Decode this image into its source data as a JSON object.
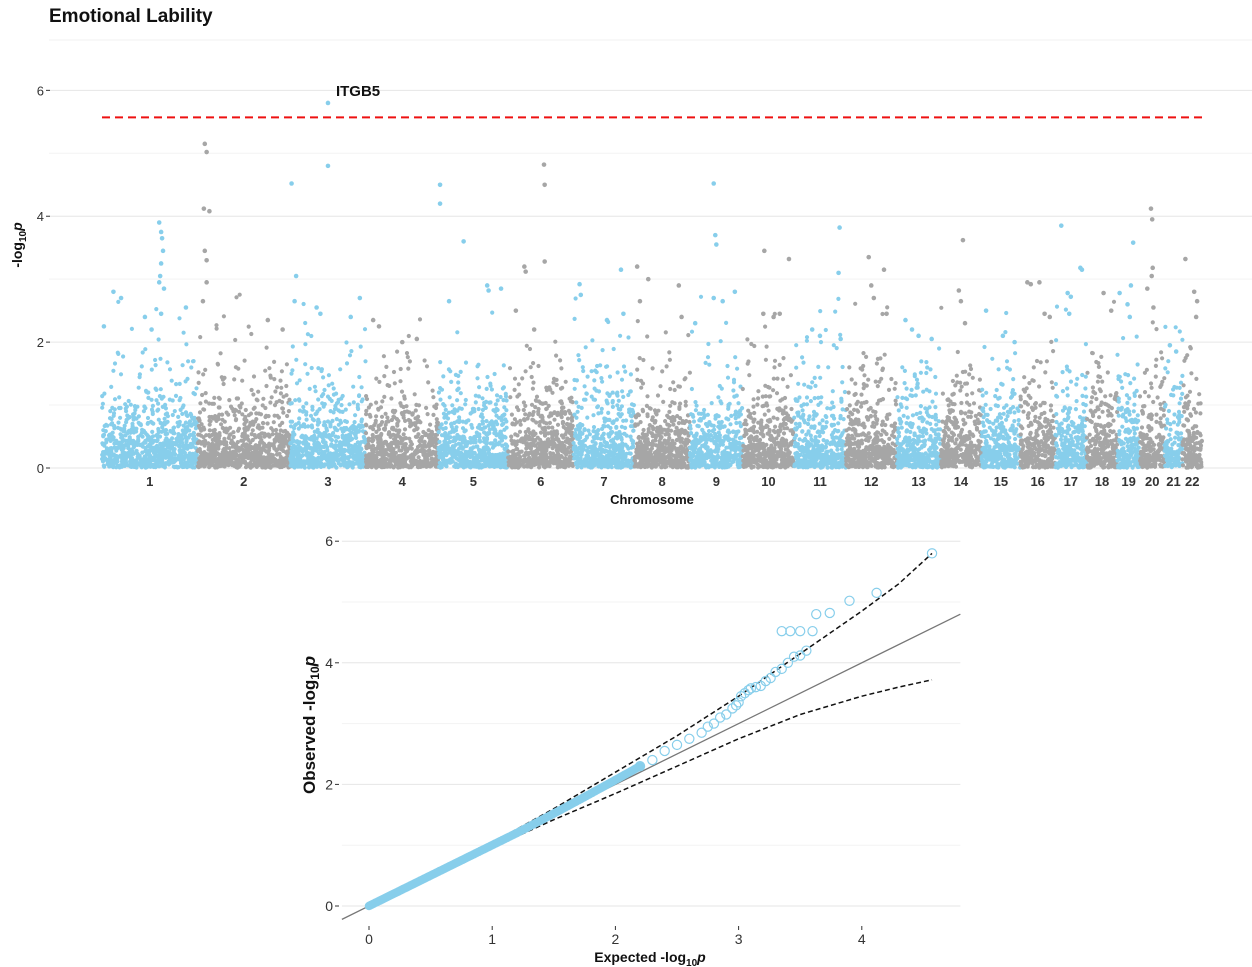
{
  "figure_title": "Emotional Lability",
  "chart_data": [
    {
      "type": "scatter",
      "subtype": "manhattan",
      "title": "Emotional Lability",
      "xlabel": "Chromosome",
      "ylabel_main": "-log",
      "ylabel_sub": "10",
      "ylabel_tail": "p",
      "ylim": [
        0,
        6.8
      ],
      "yticks": [
        0,
        2,
        4,
        6
      ],
      "significance_threshold": 5.57,
      "threshold_color": "#ee1111",
      "colors": [
        "#87ceeb",
        "#a6a6a6"
      ],
      "grid": "horizontal",
      "chromosomes": [
        {
          "label": "1",
          "relative_size": 249
        },
        {
          "label": "2",
          "relative_size": 242
        },
        {
          "label": "3",
          "relative_size": 198
        },
        {
          "label": "4",
          "relative_size": 190
        },
        {
          "label": "5",
          "relative_size": 181
        },
        {
          "label": "6",
          "relative_size": 171
        },
        {
          "label": "7",
          "relative_size": 159
        },
        {
          "label": "8",
          "relative_size": 145
        },
        {
          "label": "9",
          "relative_size": 138
        },
        {
          "label": "10",
          "relative_size": 134
        },
        {
          "label": "11",
          "relative_size": 135
        },
        {
          "label": "12",
          "relative_size": 133
        },
        {
          "label": "13",
          "relative_size": 114
        },
        {
          "label": "14",
          "relative_size": 107
        },
        {
          "label": "15",
          "relative_size": 102
        },
        {
          "label": "16",
          "relative_size": 90
        },
        {
          "label": "17",
          "relative_size": 83
        },
        {
          "label": "18",
          "relative_size": 80
        },
        {
          "label": "19",
          "relative_size": 59
        },
        {
          "label": "20",
          "relative_size": 64
        },
        {
          "label": "21",
          "relative_size": 47
        },
        {
          "label": "22",
          "relative_size": 51
        }
      ],
      "top_points": [
        {
          "chr": "1",
          "pos": 0.02,
          "y": 2.25
        },
        {
          "chr": "1",
          "pos": 0.12,
          "y": 2.8
        },
        {
          "chr": "1",
          "pos": 0.2,
          "y": 2.7
        },
        {
          "chr": "1",
          "pos": 0.45,
          "y": 2.4
        },
        {
          "chr": "1",
          "pos": 0.52,
          "y": 2.2
        },
        {
          "chr": "1",
          "pos": 0.62,
          "y": 2.45
        },
        {
          "chr": "1",
          "pos": 0.6,
          "y": 3.9
        },
        {
          "chr": "1",
          "pos": 0.62,
          "y": 3.75
        },
        {
          "chr": "1",
          "pos": 0.63,
          "y": 3.65
        },
        {
          "chr": "1",
          "pos": 0.64,
          "y": 3.45
        },
        {
          "chr": "1",
          "pos": 0.62,
          "y": 3.25
        },
        {
          "chr": "1",
          "pos": 0.61,
          "y": 3.05
        },
        {
          "chr": "1",
          "pos": 0.6,
          "y": 2.95
        },
        {
          "chr": "1",
          "pos": 0.65,
          "y": 2.85
        },
        {
          "chr": "1",
          "pos": 0.88,
          "y": 2.55
        },
        {
          "chr": "2",
          "pos": 0.08,
          "y": 5.15
        },
        {
          "chr": "2",
          "pos": 0.1,
          "y": 5.02
        },
        {
          "chr": "2",
          "pos": 0.07,
          "y": 4.12
        },
        {
          "chr": "2",
          "pos": 0.13,
          "y": 4.08
        },
        {
          "chr": "2",
          "pos": 0.08,
          "y": 3.45
        },
        {
          "chr": "2",
          "pos": 0.1,
          "y": 3.3
        },
        {
          "chr": "2",
          "pos": 0.06,
          "y": 2.65
        },
        {
          "chr": "2",
          "pos": 0.1,
          "y": 2.95
        },
        {
          "chr": "2",
          "pos": 0.76,
          "y": 2.35
        },
        {
          "chr": "2",
          "pos": 0.92,
          "y": 2.2
        },
        {
          "chr": "3",
          "pos": 0.02,
          "y": 4.52
        },
        {
          "chr": "3",
          "pos": 0.08,
          "y": 3.05
        },
        {
          "chr": "3",
          "pos": 0.06,
          "y": 2.65
        },
        {
          "chr": "3",
          "pos": 0.5,
          "y": 5.8
        },
        {
          "chr": "3",
          "pos": 0.5,
          "y": 4.8
        },
        {
          "chr": "3",
          "pos": 0.35,
          "y": 2.55
        },
        {
          "chr": "3",
          "pos": 0.4,
          "y": 2.45
        },
        {
          "chr": "3",
          "pos": 0.8,
          "y": 2.4
        },
        {
          "chr": "3",
          "pos": 0.92,
          "y": 2.7
        },
        {
          "chr": "4",
          "pos": 0.1,
          "y": 2.35
        },
        {
          "chr": "4",
          "pos": 0.18,
          "y": 2.25
        },
        {
          "chr": "4",
          "pos": 0.5,
          "y": 2.0
        },
        {
          "chr": "4",
          "pos": 0.7,
          "y": 2.05
        },
        {
          "chr": "5",
          "pos": 0.02,
          "y": 4.5
        },
        {
          "chr": "5",
          "pos": 0.02,
          "y": 4.2
        },
        {
          "chr": "5",
          "pos": 0.36,
          "y": 3.6
        },
        {
          "chr": "5",
          "pos": 0.15,
          "y": 2.65
        },
        {
          "chr": "5",
          "pos": 0.7,
          "y": 2.9
        },
        {
          "chr": "5",
          "pos": 0.72,
          "y": 2.82
        },
        {
          "chr": "5",
          "pos": 0.9,
          "y": 2.85
        },
        {
          "chr": "6",
          "pos": 0.25,
          "y": 3.2
        },
        {
          "chr": "6",
          "pos": 0.27,
          "y": 3.12
        },
        {
          "chr": "6",
          "pos": 0.55,
          "y": 4.82
        },
        {
          "chr": "6",
          "pos": 0.56,
          "y": 4.5
        },
        {
          "chr": "6",
          "pos": 0.56,
          "y": 3.28
        },
        {
          "chr": "6",
          "pos": 0.12,
          "y": 2.5
        },
        {
          "chr": "6",
          "pos": 0.4,
          "y": 2.2
        },
        {
          "chr": "7",
          "pos": 0.1,
          "y": 2.92
        },
        {
          "chr": "7",
          "pos": 0.12,
          "y": 2.75
        },
        {
          "chr": "7",
          "pos": 0.55,
          "y": 2.35
        },
        {
          "chr": "7",
          "pos": 0.78,
          "y": 3.15
        },
        {
          "chr": "7",
          "pos": 0.82,
          "y": 2.45
        },
        {
          "chr": "8",
          "pos": 0.05,
          "y": 3.2
        },
        {
          "chr": "8",
          "pos": 0.25,
          "y": 3.0
        },
        {
          "chr": "8",
          "pos": 0.1,
          "y": 2.65
        },
        {
          "chr": "8",
          "pos": 0.8,
          "y": 2.9
        },
        {
          "chr": "8",
          "pos": 0.85,
          "y": 2.4
        },
        {
          "chr": "9",
          "pos": 0.45,
          "y": 4.52
        },
        {
          "chr": "9",
          "pos": 0.48,
          "y": 3.7
        },
        {
          "chr": "9",
          "pos": 0.5,
          "y": 3.55
        },
        {
          "chr": "9",
          "pos": 0.45,
          "y": 2.7
        },
        {
          "chr": "9",
          "pos": 0.62,
          "y": 2.65
        },
        {
          "chr": "9",
          "pos": 0.85,
          "y": 2.8
        },
        {
          "chr": "9",
          "pos": 0.1,
          "y": 2.3
        },
        {
          "chr": "10",
          "pos": 0.42,
          "y": 3.45
        },
        {
          "chr": "10",
          "pos": 0.4,
          "y": 2.45
        },
        {
          "chr": "10",
          "pos": 0.6,
          "y": 2.4
        },
        {
          "chr": "10",
          "pos": 0.72,
          "y": 2.45
        },
        {
          "chr": "10",
          "pos": 0.9,
          "y": 3.32
        },
        {
          "chr": "11",
          "pos": 0.35,
          "y": 2.2
        },
        {
          "chr": "11",
          "pos": 0.5,
          "y": 2.1
        },
        {
          "chr": "11",
          "pos": 0.88,
          "y": 3.82
        },
        {
          "chr": "11",
          "pos": 0.86,
          "y": 3.1
        },
        {
          "chr": "11",
          "pos": 0.9,
          "y": 2.05
        },
        {
          "chr": "12",
          "pos": 0.45,
          "y": 3.35
        },
        {
          "chr": "12",
          "pos": 0.75,
          "y": 3.15
        },
        {
          "chr": "12",
          "pos": 0.5,
          "y": 2.9
        },
        {
          "chr": "12",
          "pos": 0.55,
          "y": 2.7
        },
        {
          "chr": "12",
          "pos": 0.8,
          "y": 2.45
        },
        {
          "chr": "13",
          "pos": 0.2,
          "y": 2.35
        },
        {
          "chr": "13",
          "pos": 0.35,
          "y": 2.2
        },
        {
          "chr": "13",
          "pos": 0.5,
          "y": 2.1
        },
        {
          "chr": "13",
          "pos": 0.8,
          "y": 2.05
        },
        {
          "chr": "14",
          "pos": 0.45,
          "y": 2.82
        },
        {
          "chr": "14",
          "pos": 0.55,
          "y": 3.62
        },
        {
          "chr": "14",
          "pos": 0.5,
          "y": 2.65
        },
        {
          "chr": "14",
          "pos": 0.6,
          "y": 2.3
        },
        {
          "chr": "15",
          "pos": 0.12,
          "y": 2.5
        },
        {
          "chr": "15",
          "pos": 0.55,
          "y": 2.1
        },
        {
          "chr": "15",
          "pos": 0.85,
          "y": 2.0
        },
        {
          "chr": "16",
          "pos": 0.2,
          "y": 2.95
        },
        {
          "chr": "16",
          "pos": 0.3,
          "y": 2.92
        },
        {
          "chr": "16",
          "pos": 0.55,
          "y": 2.95
        },
        {
          "chr": "16",
          "pos": 0.7,
          "y": 2.45
        },
        {
          "chr": "16",
          "pos": 0.85,
          "y": 2.4
        },
        {
          "chr": "17",
          "pos": 0.2,
          "y": 3.85
        },
        {
          "chr": "17",
          "pos": 0.4,
          "y": 2.78
        },
        {
          "chr": "17",
          "pos": 0.5,
          "y": 2.72
        },
        {
          "chr": "17",
          "pos": 0.8,
          "y": 3.18
        },
        {
          "chr": "17",
          "pos": 0.85,
          "y": 3.15
        },
        {
          "chr": "17",
          "pos": 0.45,
          "y": 2.45
        },
        {
          "chr": "18",
          "pos": 0.55,
          "y": 2.78
        },
        {
          "chr": "18",
          "pos": 0.8,
          "y": 2.5
        },
        {
          "chr": "19",
          "pos": 0.1,
          "y": 2.78
        },
        {
          "chr": "19",
          "pos": 0.45,
          "y": 2.6
        },
        {
          "chr": "19",
          "pos": 0.6,
          "y": 2.9
        },
        {
          "chr": "19",
          "pos": 0.7,
          "y": 3.58
        },
        {
          "chr": "19",
          "pos": 0.55,
          "y": 2.4
        },
        {
          "chr": "20",
          "pos": 0.45,
          "y": 4.12
        },
        {
          "chr": "20",
          "pos": 0.5,
          "y": 3.95
        },
        {
          "chr": "20",
          "pos": 0.52,
          "y": 3.18
        },
        {
          "chr": "20",
          "pos": 0.48,
          "y": 3.05
        },
        {
          "chr": "20",
          "pos": 0.3,
          "y": 2.85
        },
        {
          "chr": "20",
          "pos": 0.55,
          "y": 2.55
        },
        {
          "chr": "21",
          "pos": 0.3,
          "y": 1.95
        },
        {
          "chr": "21",
          "pos": 0.65,
          "y": 1.85
        },
        {
          "chr": "22",
          "pos": 0.15,
          "y": 3.32
        },
        {
          "chr": "22",
          "pos": 0.6,
          "y": 2.8
        },
        {
          "chr": "22",
          "pos": 0.75,
          "y": 2.65
        },
        {
          "chr": "22",
          "pos": 0.7,
          "y": 2.4
        }
      ],
      "annotations": [
        {
          "text": "ITGB5",
          "chr": "3",
          "pos": 0.5,
          "y": 5.8
        }
      ]
    },
    {
      "type": "scatter",
      "subtype": "qq",
      "xlabel_main": "Expected -log",
      "xlabel_sub": "10",
      "xlabel_tail": "p",
      "ylabel_main": "Observed -log",
      "ylabel_sub": "10",
      "ylabel_tail": "p",
      "xlim": [
        -0.22,
        4.8
      ],
      "ylim": [
        -0.22,
        6.2
      ],
      "xticks": [
        0,
        1,
        2,
        3,
        4
      ],
      "yticks": [
        0,
        2,
        4,
        6
      ],
      "point_color": "#87ceeb",
      "grid": "horizontal",
      "reference_line": {
        "x": [
          -0.22,
          4.8
        ],
        "y": [
          -0.22,
          4.8
        ],
        "color": "#777777"
      },
      "upper_band": [
        [
          0,
          0
        ],
        [
          0.5,
          0.52
        ],
        [
          1,
          1.04
        ],
        [
          1.5,
          1.6
        ],
        [
          2,
          2.2
        ],
        [
          2.5,
          2.8
        ],
        [
          3,
          3.45
        ],
        [
          3.5,
          4.15
        ],
        [
          4,
          4.85
        ],
        [
          4.3,
          5.3
        ],
        [
          4.57,
          5.8
        ]
      ],
      "lower_band": [
        [
          0,
          0
        ],
        [
          0.5,
          0.48
        ],
        [
          1,
          0.96
        ],
        [
          1.5,
          1.42
        ],
        [
          2,
          1.85
        ],
        [
          2.5,
          2.3
        ],
        [
          3,
          2.75
        ],
        [
          3.5,
          3.15
        ],
        [
          4,
          3.45
        ],
        [
          4.3,
          3.6
        ],
        [
          4.57,
          3.72
        ]
      ],
      "tail_points": [
        [
          2.2,
          2.3
        ],
        [
          2.3,
          2.4
        ],
        [
          2.4,
          2.55
        ],
        [
          2.5,
          2.65
        ],
        [
          2.6,
          2.75
        ],
        [
          2.7,
          2.85
        ],
        [
          2.75,
          2.95
        ],
        [
          2.8,
          3.0
        ],
        [
          2.85,
          3.1
        ],
        [
          2.9,
          3.15
        ],
        [
          2.95,
          3.25
        ],
        [
          2.98,
          3.3
        ],
        [
          3.0,
          3.35
        ],
        [
          3.02,
          3.45
        ],
        [
          3.05,
          3.5
        ],
        [
          3.08,
          3.55
        ],
        [
          3.1,
          3.58
        ],
        [
          3.14,
          3.6
        ],
        [
          3.18,
          3.62
        ],
        [
          3.22,
          3.7
        ],
        [
          3.26,
          3.75
        ],
        [
          3.3,
          3.85
        ],
        [
          3.35,
          3.9
        ],
        [
          3.4,
          4.0
        ],
        [
          3.45,
          4.1
        ],
        [
          3.5,
          4.12
        ],
        [
          3.55,
          4.2
        ],
        [
          3.35,
          4.52
        ],
        [
          3.42,
          4.52
        ],
        [
          3.5,
          4.52
        ],
        [
          3.6,
          4.52
        ],
        [
          3.63,
          4.8
        ],
        [
          3.74,
          4.82
        ],
        [
          3.9,
          5.02
        ],
        [
          4.12,
          5.15
        ],
        [
          4.57,
          5.8
        ]
      ]
    }
  ]
}
